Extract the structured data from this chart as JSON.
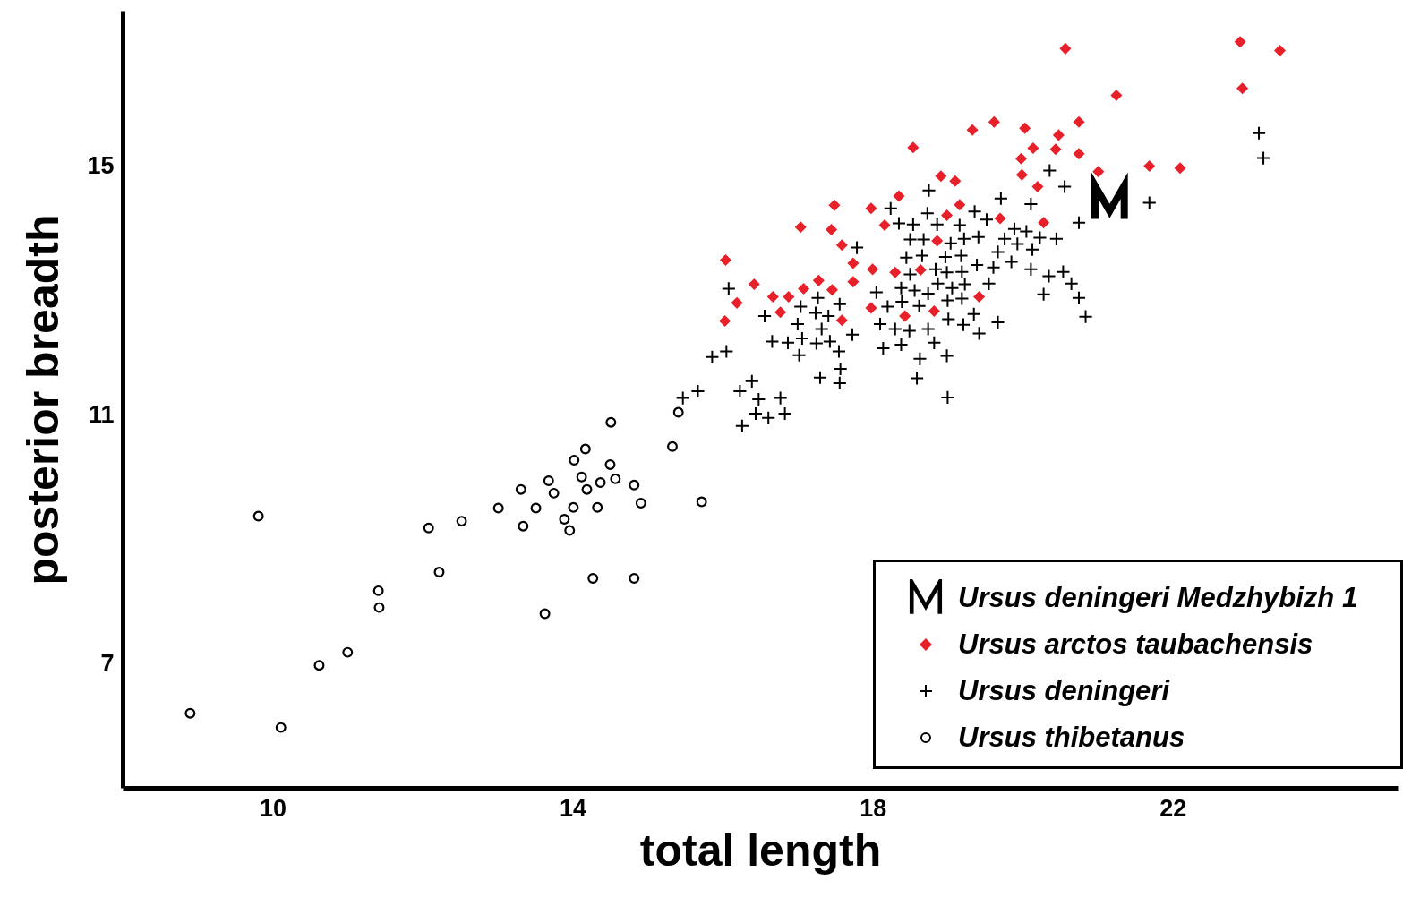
{
  "chart_data": {
    "type": "scatter",
    "xlabel": "total length",
    "ylabel": "posterior breadth",
    "xlim": [
      8,
      25
    ],
    "ylim": [
      5,
      17.5
    ],
    "xticks": [
      10,
      14,
      18,
      22
    ],
    "yticks": [
      7,
      11,
      15
    ],
    "legend": "bottom right",
    "series": [
      {
        "name": "Ursus deningeri Medzhybizh 1",
        "color": "#000000",
        "x": [
          21.16
        ],
        "values": [
          14.42
        ]
      },
      {
        "name": "Ursus arctos taubachensis",
        "color": "#e8202a",
        "marker": "diamond",
        "x": [
          16.04,
          16.03,
          16.19,
          16.42,
          16.67,
          16.88,
          16.77,
          17.08,
          17.04,
          17.28,
          17.46,
          17.45,
          17.49,
          17.59,
          17.59,
          17.74,
          17.74,
          17.98,
          18.0,
          17.98,
          18.16,
          18.35,
          18.3,
          18.43,
          18.54,
          18.64,
          18.82,
          18.86,
          18.91,
          18.99,
          19.1,
          19.16,
          19.33,
          19.42,
          19.62,
          19.7,
          19.98,
          19.99,
          20.03,
          20.14,
          20.2,
          20.28,
          20.44,
          20.48,
          20.57,
          20.75,
          20.75,
          21.01,
          21.25,
          21.69,
          22.1,
          22.9,
          22.93,
          23.43
        ],
        "values": [
          13.49,
          12.51,
          12.8,
          13.1,
          12.9,
          12.9,
          12.65,
          13.03,
          14.02,
          13.16,
          13.01,
          13.98,
          14.37,
          13.73,
          12.52,
          13.44,
          13.14,
          14.32,
          13.34,
          12.72,
          14.05,
          14.52,
          13.29,
          12.59,
          15.3,
          13.33,
          12.67,
          13.8,
          14.84,
          14.21,
          14.76,
          14.38,
          15.58,
          12.9,
          15.71,
          14.16,
          15.12,
          14.86,
          15.61,
          15.29,
          14.67,
          14.09,
          15.27,
          15.5,
          16.89,
          15.71,
          15.2,
          14.91,
          16.14,
          15.0,
          14.97,
          17.0,
          16.25,
          16.86
        ]
      },
      {
        "name": "Ursus deningeri",
        "color": "#000000",
        "marker": "cross",
        "x": [
          15.47,
          15.67,
          15.86,
          16.05,
          16.08,
          16.23,
          16.26,
          16.39,
          16.44,
          16.48,
          16.56,
          16.61,
          16.66,
          16.77,
          16.83,
          16.87,
          17.0,
          17.02,
          17.04,
          17.06,
          17.24,
          17.25,
          17.27,
          17.3,
          17.32,
          17.41,
          17.43,
          17.55,
          17.56,
          17.56,
          17.57,
          17.73,
          17.79,
          18.05,
          18.1,
          18.14,
          18.2,
          18.24,
          18.3,
          18.35,
          18.38,
          18.38,
          18.39,
          18.45,
          18.49,
          18.5,
          18.5,
          18.54,
          18.56,
          18.59,
          18.62,
          18.63,
          18.66,
          18.68,
          18.73,
          18.74,
          18.74,
          18.75,
          18.82,
          18.84,
          18.86,
          18.87,
          18.97,
          18.99,
          18.99,
          19.0,
          19.0,
          19.01,
          19.04,
          19.06,
          19.16,
          19.18,
          19.19,
          19.19,
          19.21,
          19.22,
          19.23,
          19.35,
          19.36,
          19.39,
          19.41,
          19.42,
          19.52,
          19.55,
          19.61,
          19.67,
          19.67,
          19.71,
          19.76,
          19.85,
          19.89,
          19.93,
          20.05,
          20.11,
          20.11,
          20.13,
          20.23,
          20.28,
          20.35,
          20.36,
          20.45,
          20.54,
          20.56,
          20.65,
          20.75,
          20.75,
          20.84,
          21.69,
          23.15,
          23.21
        ],
        "values": [
          11.27,
          11.38,
          11.93,
          12.02,
          13.03,
          11.38,
          10.82,
          11.54,
          11.02,
          11.25,
          12.59,
          10.95,
          12.18,
          11.27,
          11.02,
          12.16,
          12.46,
          11.96,
          12.74,
          12.23,
          12.64,
          12.15,
          12.88,
          11.6,
          12.38,
          12.59,
          12.18,
          12.02,
          12.78,
          11.51,
          11.74,
          12.29,
          13.69,
          12.97,
          12.46,
          12.07,
          12.74,
          14.32,
          12.38,
          14.08,
          13.04,
          12.13,
          12.82,
          13.53,
          12.35,
          13.82,
          13.26,
          14.06,
          13.0,
          11.59,
          12.75,
          11.9,
          13.56,
          13.82,
          14.24,
          12.95,
          12.38,
          14.61,
          12.16,
          13.34,
          14.06,
          13.11,
          13.54,
          13.29,
          11.95,
          12.84,
          11.28,
          12.54,
          13.76,
          13.04,
          14.05,
          13.56,
          13.3,
          12.87,
          12.45,
          13.83,
          13.1,
          12.62,
          14.27,
          13.41,
          13.86,
          12.31,
          14.14,
          13.11,
          13.37,
          13.62,
          12.49,
          14.48,
          13.83,
          13.46,
          13.99,
          13.75,
          13.95,
          14.39,
          13.34,
          13.66,
          13.85,
          12.94,
          13.23,
          14.93,
          13.83,
          13.3,
          14.67,
          13.11,
          14.09,
          12.88,
          12.58,
          14.41,
          15.53,
          15.13
        ]
      },
      {
        "name": "Ursus thibetanus",
        "color": "#000000",
        "marker": "circle",
        "x": [
          8.9,
          10.11,
          9.81,
          10.62,
          11.0,
          11.41,
          11.42,
          12.08,
          12.22,
          12.52,
          13.01,
          13.31,
          13.34,
          13.51,
          13.63,
          13.68,
          13.75,
          13.89,
          13.96,
          14.01,
          14.02,
          14.12,
          14.17,
          14.19,
          14.27,
          14.33,
          14.37,
          14.5,
          14.51,
          14.57,
          14.82,
          14.82,
          14.91,
          15.33,
          15.41,
          15.72
        ],
        "values": [
          6.2,
          5.97,
          9.37,
          6.97,
          7.18,
          8.17,
          7.9,
          9.18,
          8.47,
          9.29,
          9.5,
          9.8,
          9.21,
          9.5,
          7.8,
          9.94,
          9.74,
          9.32,
          9.14,
          9.51,
          10.27,
          10.0,
          10.45,
          9.8,
          8.37,
          9.51,
          9.91,
          10.2,
          10.88,
          9.97,
          9.87,
          8.37,
          9.58,
          10.49,
          11.04,
          9.6
        ]
      }
    ]
  }
}
